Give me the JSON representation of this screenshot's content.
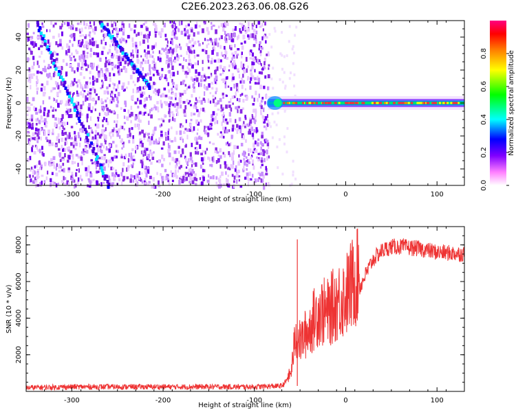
{
  "title": "C2E6.2023.263.06.08.G26",
  "chart_data": [
    {
      "type": "heatmap",
      "xlabel": "Height of straight line (km)",
      "ylabel": "Frequency (Hz)",
      "xlim": [
        -350,
        130
      ],
      "ylim": [
        -50,
        50
      ],
      "xticks": [
        -300,
        -200,
        -100,
        0,
        100
      ],
      "yticks": [
        -40,
        -20,
        0,
        20,
        40
      ],
      "noise_region_x": [
        -350,
        -85
      ],
      "features": [
        {
          "kind": "diagonal-streak",
          "x": [
            -340,
            -260
          ],
          "y": [
            50,
            -50
          ]
        },
        {
          "kind": "diagonal-streak",
          "x": [
            -270,
            -215
          ],
          "y": [
            50,
            10
          ]
        },
        {
          "kind": "carrier-line",
          "x": [
            -85,
            130
          ],
          "y": 0,
          "amplitude": 0.95
        }
      ],
      "colorbar": {
        "label": "Normalized spectral amplitude",
        "range": [
          0,
          1
        ],
        "ticks": [
          "0.0",
          "0.2",
          "0.4",
          "0.6",
          "0.8"
        ],
        "colormap": [
          "#ffffff",
          "#ff80ff",
          "#8000ff",
          "#0000ff",
          "#00ffff",
          "#00ff00",
          "#ffff00",
          "#ff8000",
          "#ff0000",
          "#ff0080"
        ]
      }
    },
    {
      "type": "line",
      "xlabel": "Height of straight line (km)",
      "ylabel": "SNR (10 * v/v)",
      "xlim": [
        -350,
        130
      ],
      "ylim": [
        0,
        9000
      ],
      "xticks": [
        -300,
        -200,
        -100,
        0,
        100
      ],
      "yticks": [
        2000,
        4000,
        6000,
        8000
      ],
      "color": "#ee3333",
      "series": [
        {
          "x": [
            -350,
            -300,
            -250,
            -200,
            -150,
            -100,
            -70,
            -60,
            -55,
            -50,
            -40,
            -30,
            -20,
            -10,
            0,
            10,
            20,
            30,
            40,
            50,
            60,
            80,
            100,
            130
          ],
          "values": [
            200,
            250,
            250,
            250,
            250,
            250,
            300,
            800,
            2500,
            2200,
            2800,
            3600,
            3500,
            4000,
            4300,
            5000,
            6200,
            7200,
            7700,
            7900,
            7900,
            7800,
            7600,
            7500
          ]
        }
      ],
      "spike": {
        "x": -53,
        "y": 8300
      }
    }
  ]
}
